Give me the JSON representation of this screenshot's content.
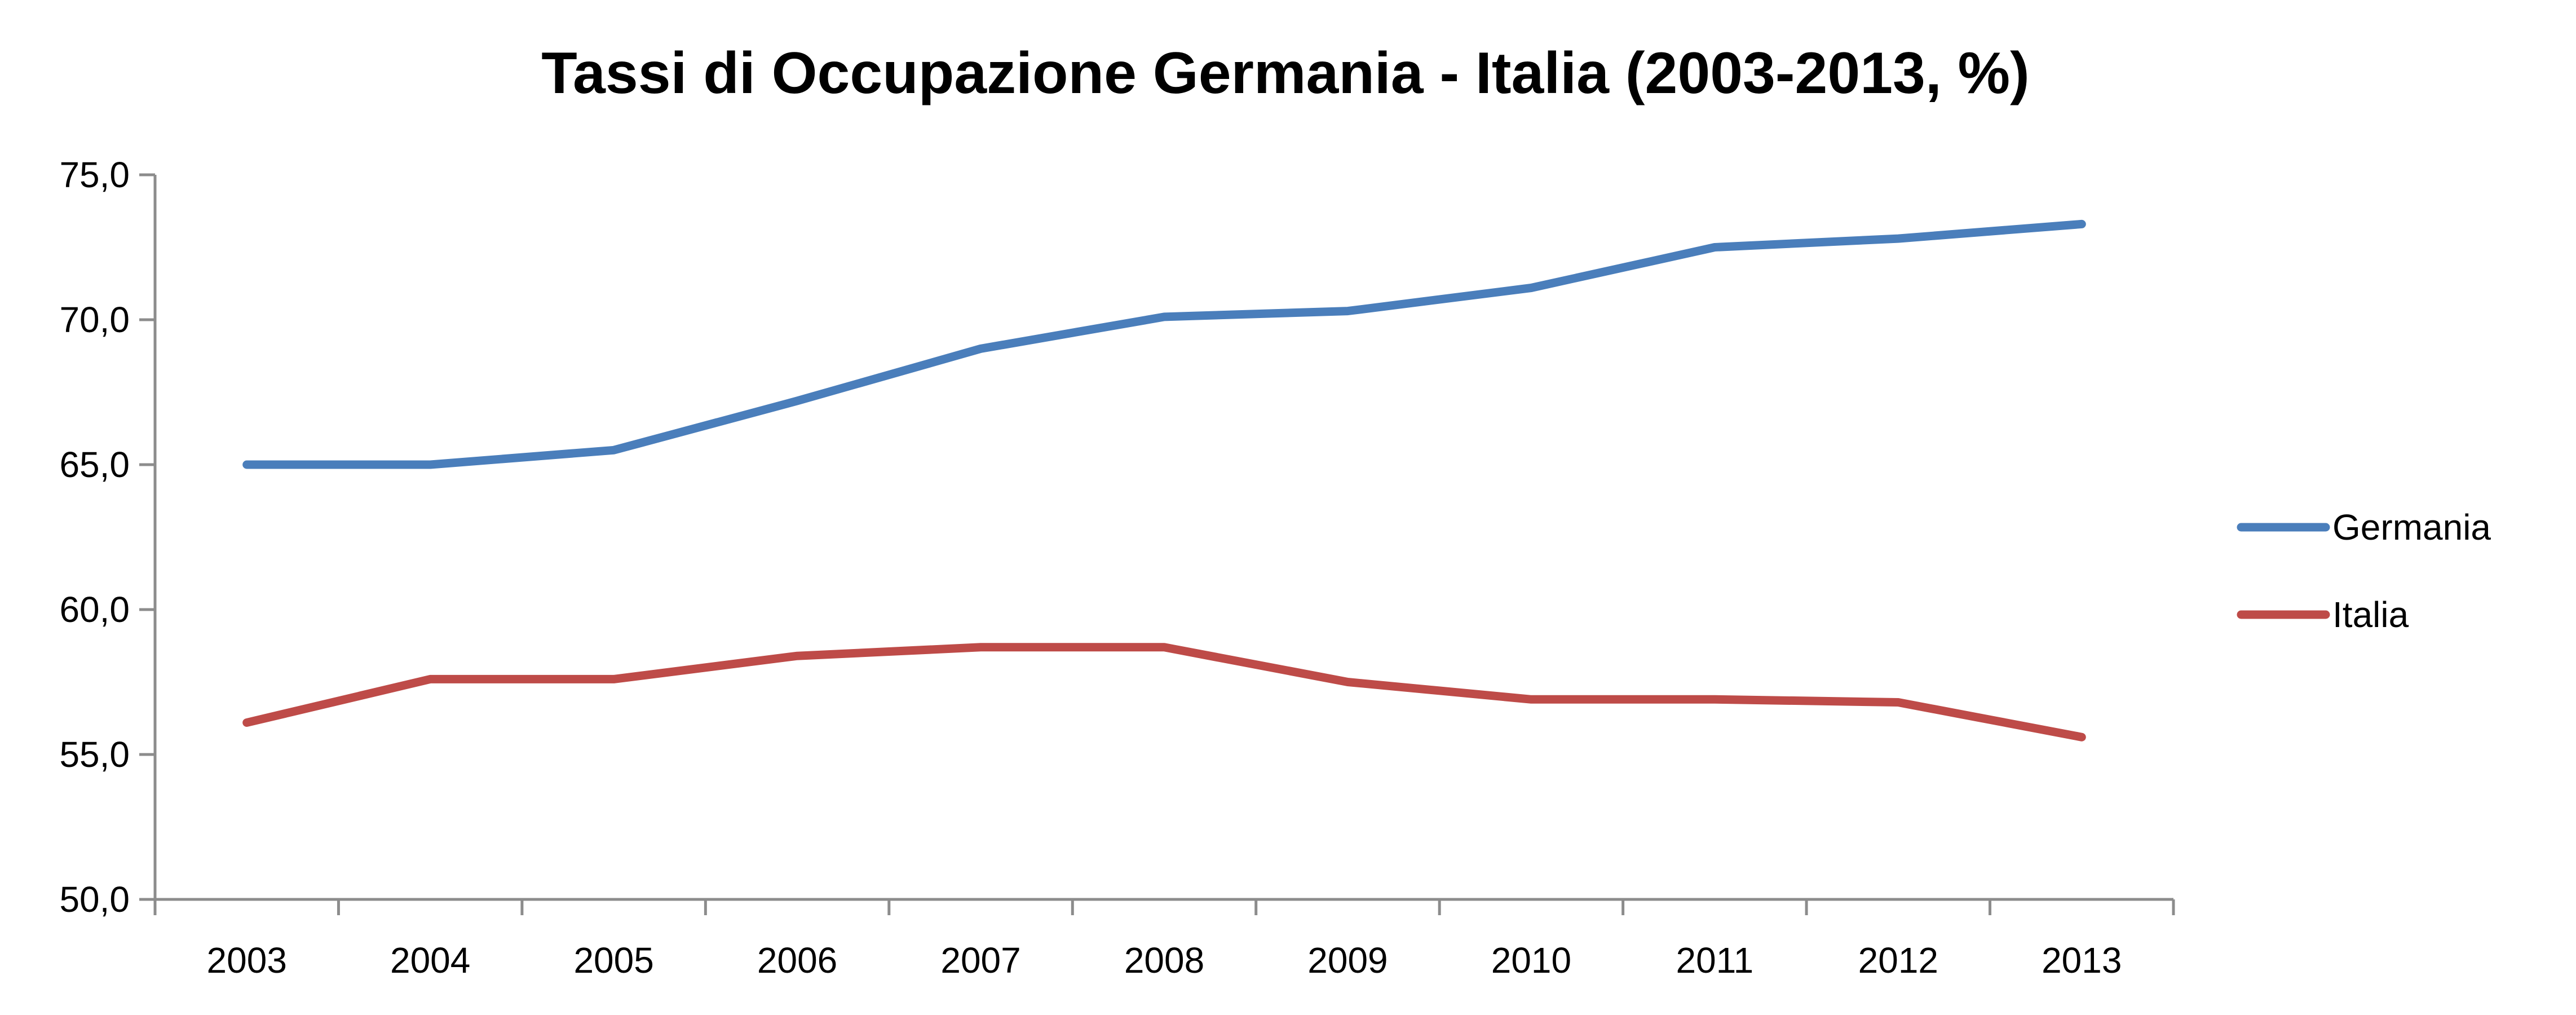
{
  "chart_data": {
    "type": "line",
    "title": "Tassi di Occupazione Germania - Italia (2003-2013, %)",
    "xlabel": "",
    "ylabel": "",
    "categories": [
      "2003",
      "2004",
      "2005",
      "2006",
      "2007",
      "2008",
      "2009",
      "2010",
      "2011",
      "2012",
      "2013"
    ],
    "ylim": [
      50,
      75
    ],
    "yticks": [
      {
        "value": 50,
        "label": "50,0"
      },
      {
        "value": 55,
        "label": "55,0"
      },
      {
        "value": 60,
        "label": "60,0"
      },
      {
        "value": 65,
        "label": "65,0"
      },
      {
        "value": 70,
        "label": "70,0"
      },
      {
        "value": 75,
        "label": "75,0"
      }
    ],
    "grid": false,
    "legend_position": "right",
    "series": [
      {
        "name": "Germania",
        "color": "#4a7ebb",
        "values": [
          65.0,
          65.0,
          65.5,
          67.2,
          69.0,
          70.1,
          70.3,
          71.1,
          72.5,
          72.8,
          73.3
        ]
      },
      {
        "name": "Italia",
        "color": "#be4b48",
        "values": [
          56.1,
          57.6,
          57.6,
          58.4,
          58.7,
          58.7,
          57.5,
          56.9,
          56.9,
          56.8,
          55.6
        ]
      }
    ]
  }
}
